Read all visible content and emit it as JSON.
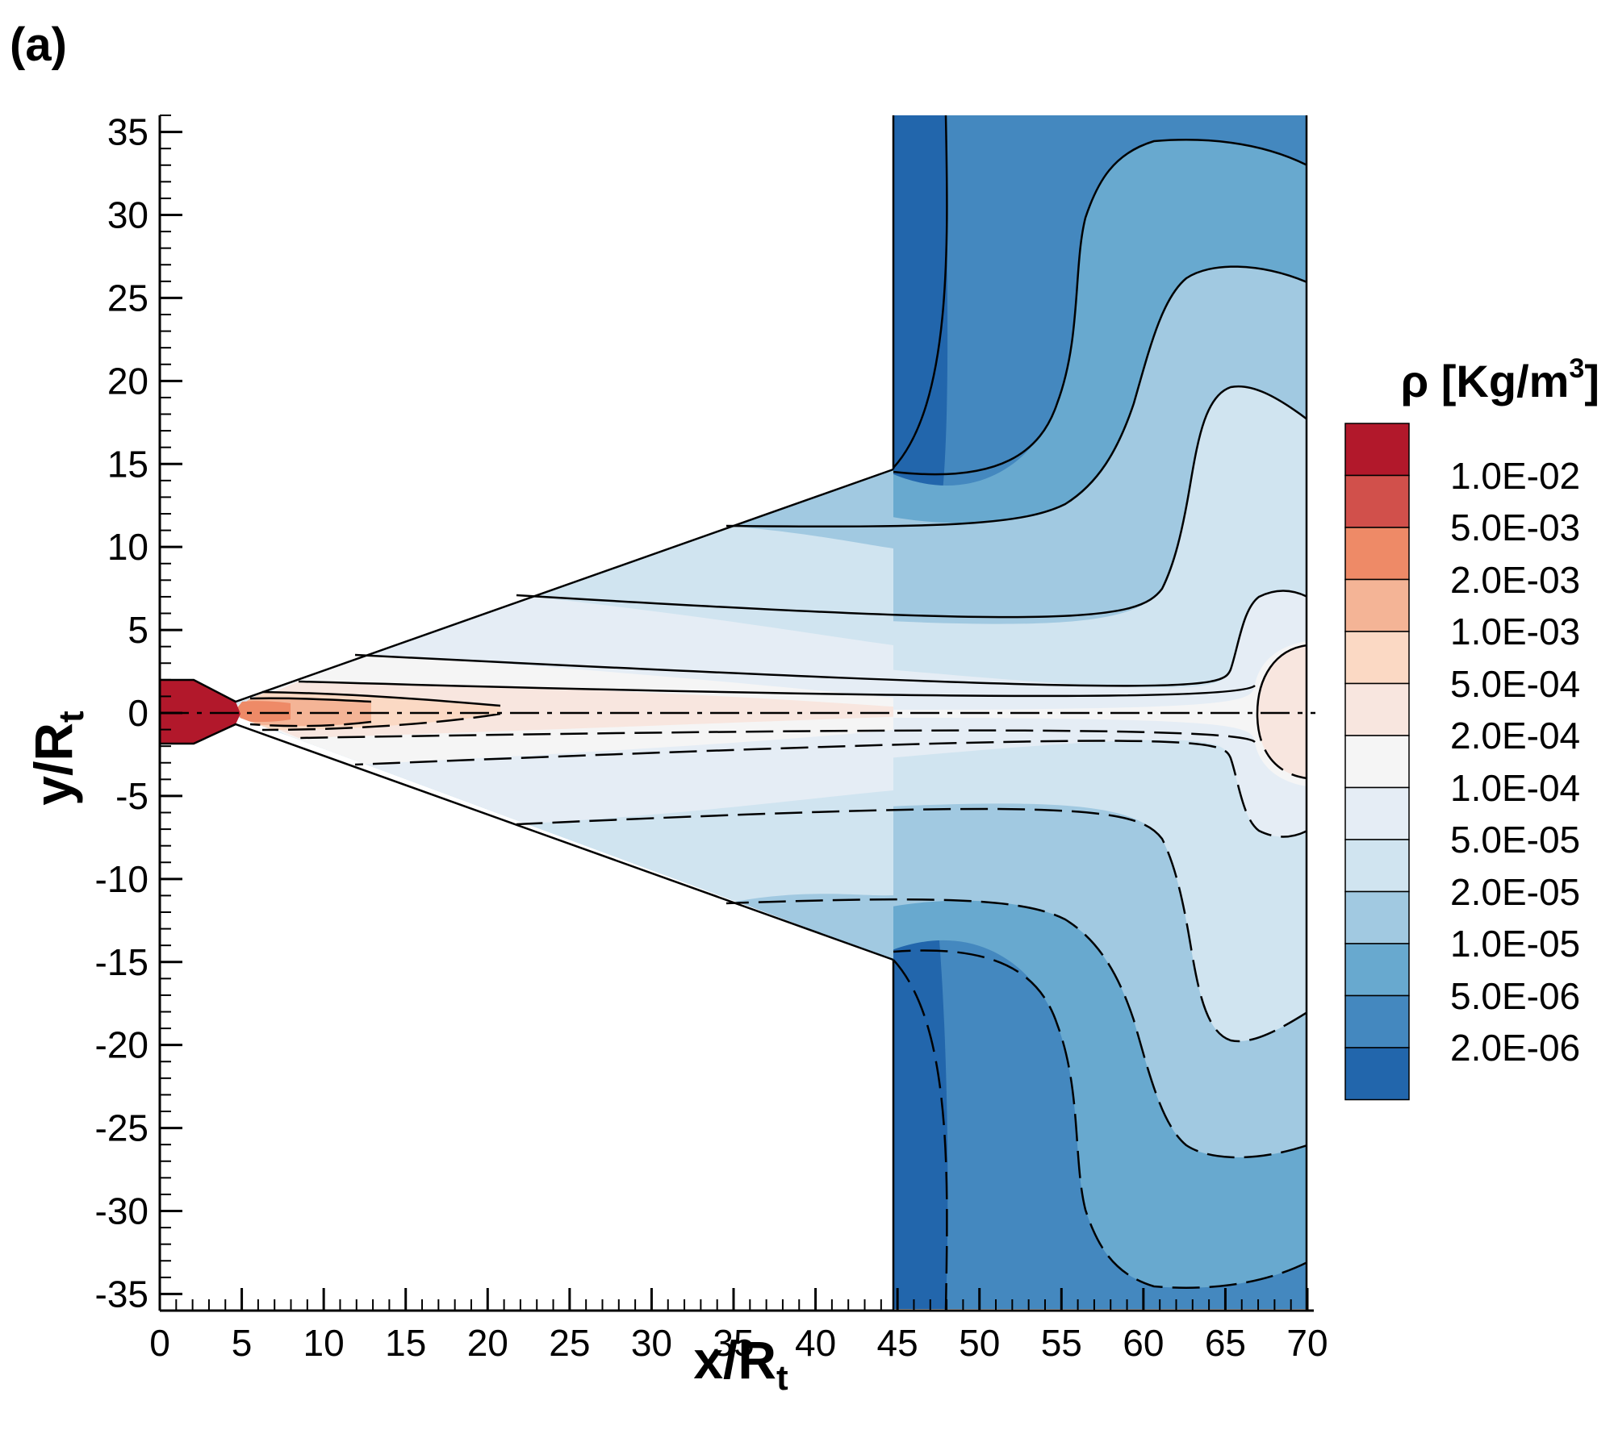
{
  "panel_label": "(a)",
  "chart_data": {
    "type": "heatmap",
    "title": "",
    "xlabel": "x/R",
    "xlabel_sub": "t",
    "ylabel": "y/R",
    "ylabel_sub": "t",
    "xlim": [
      0,
      70
    ],
    "ylim": [
      -36,
      36
    ],
    "x_ticks": [
      0,
      5,
      10,
      15,
      20,
      25,
      30,
      35,
      40,
      45,
      50,
      55,
      60,
      65,
      70
    ],
    "y_ticks": [
      35,
      30,
      25,
      20,
      15,
      10,
      5,
      0,
      -5,
      -10,
      -15,
      -20,
      -25,
      -30,
      -35
    ],
    "colorbar": {
      "title_main": "ρ [Kg/m",
      "title_sup": "3",
      "title_end": "]",
      "levels": [
        "1.0E-02",
        "5.0E-03",
        "2.0E-03",
        "1.0E-03",
        "5.0E-04",
        "2.0E-04",
        "1.0E-04",
        "5.0E-05",
        "2.0E-05",
        "1.0E-05",
        "5.0E-06",
        "2.0E-06"
      ],
      "colors": [
        "#b2182b",
        "#d1504b",
        "#ee8a67",
        "#f4b496",
        "#fbd9c4",
        "#f8e6df",
        "#f5f5f5",
        "#e5edf5",
        "#d0e4f0",
        "#a1c9e1",
        "#68a9cf",
        "#4488bf",
        "#2266ac"
      ]
    },
    "geometry": {
      "cone": {
        "apex_x": 4.5,
        "apex_half_height": 0,
        "exit_x": 45,
        "exit_half_height": 15
      },
      "nozzle": {
        "x_end": 4.5,
        "throat_half_height": 2
      },
      "plume_domain": {
        "x_min": 45,
        "x_max": 70,
        "y_min": -36,
        "y_max": 36
      }
    },
    "contour_levels_shown": "upper half solid lines, lower half dashed lines, centerline dash-dot at y=0"
  }
}
